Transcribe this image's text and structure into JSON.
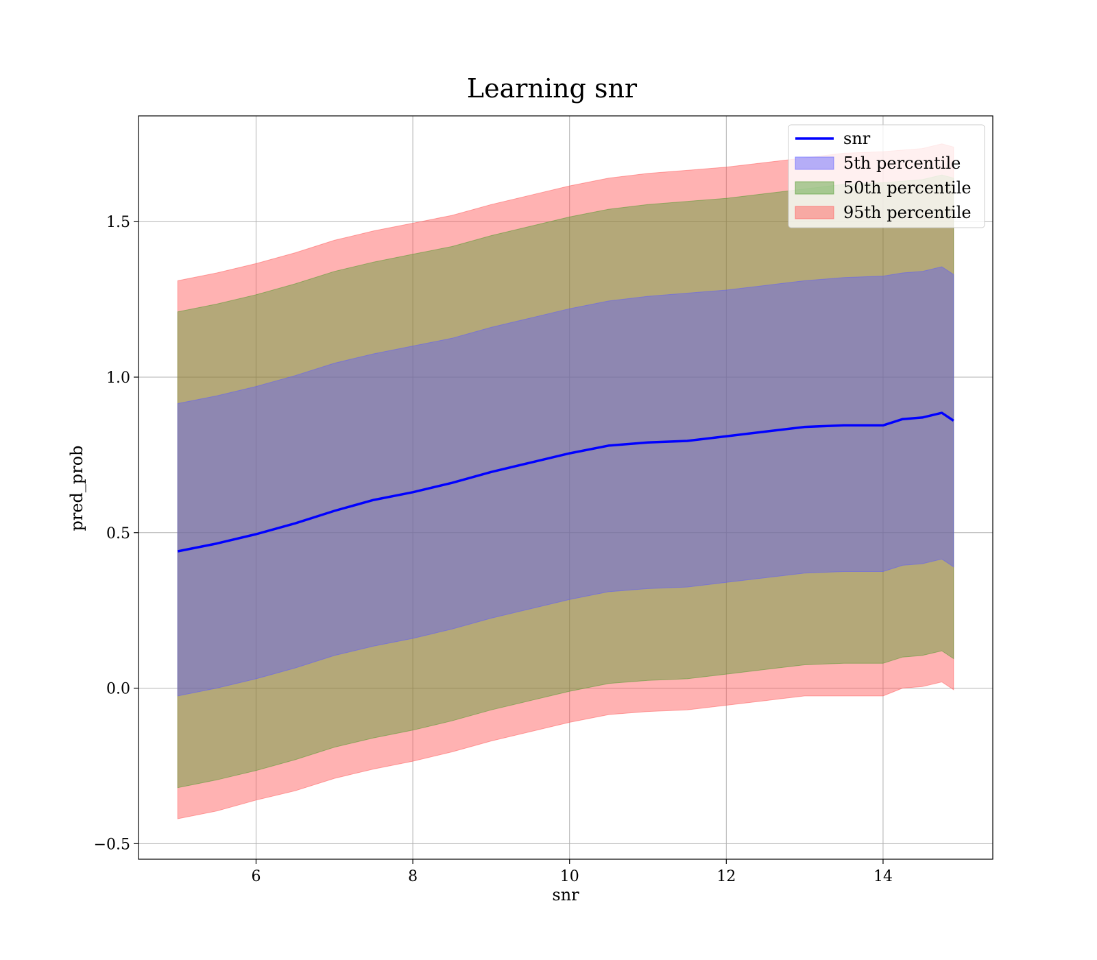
{
  "chart_data": {
    "type": "area",
    "title": "Learning snr",
    "xlabel": "snr",
    "ylabel": "pred_prob",
    "xlim": [
      4.5,
      15.4
    ],
    "ylim": [
      -0.55,
      1.84
    ],
    "xticks": [
      6,
      8,
      10,
      12,
      14
    ],
    "yticks": [
      -0.5,
      0.0,
      0.5,
      1.0,
      1.5
    ],
    "ytick_labels": [
      "−0.5",
      "0.0",
      "0.5",
      "1.0",
      "1.5"
    ],
    "grid": true,
    "legend_position": "top-right",
    "x": [
      5.0,
      5.5,
      6.0,
      6.5,
      7.0,
      7.5,
      8.0,
      8.5,
      9.0,
      9.5,
      10.0,
      10.5,
      11.0,
      11.5,
      12.0,
      12.5,
      13.0,
      13.5,
      14.0,
      14.25,
      14.5,
      14.75,
      14.9
    ],
    "line": {
      "name": "snr",
      "color": "#0000ff",
      "values": [
        0.44,
        0.465,
        0.495,
        0.53,
        0.57,
        0.605,
        0.63,
        0.66,
        0.695,
        0.725,
        0.755,
        0.78,
        0.79,
        0.795,
        0.81,
        0.825,
        0.84,
        0.845,
        0.845,
        0.865,
        0.87,
        0.885,
        0.86
      ]
    },
    "bands": [
      {
        "name": "95th percentile",
        "color": "#ff5555",
        "opacity": 0.45,
        "lower": [
          -0.42,
          -0.395,
          -0.36,
          -0.33,
          -0.29,
          -0.26,
          -0.235,
          -0.205,
          -0.17,
          -0.14,
          -0.11,
          -0.085,
          -0.075,
          -0.07,
          -0.055,
          -0.04,
          -0.025,
          -0.025,
          -0.025,
          0.0,
          0.005,
          0.02,
          -0.005
        ],
        "upper": [
          1.31,
          1.335,
          1.365,
          1.4,
          1.44,
          1.47,
          1.495,
          1.52,
          1.555,
          1.585,
          1.615,
          1.64,
          1.655,
          1.665,
          1.675,
          1.69,
          1.705,
          1.72,
          1.725,
          1.73,
          1.735,
          1.75,
          1.74
        ]
      },
      {
        "name": "50th percentile",
        "color": "#4c9a2a",
        "opacity": 0.42,
        "lower": [
          -0.32,
          -0.295,
          -0.265,
          -0.23,
          -0.19,
          -0.16,
          -0.135,
          -0.105,
          -0.07,
          -0.04,
          -0.01,
          0.015,
          0.025,
          0.03,
          0.045,
          0.06,
          0.075,
          0.08,
          0.08,
          0.1,
          0.105,
          0.12,
          0.095
        ],
        "upper": [
          1.21,
          1.235,
          1.265,
          1.3,
          1.34,
          1.37,
          1.395,
          1.42,
          1.455,
          1.485,
          1.515,
          1.54,
          1.555,
          1.565,
          1.575,
          1.59,
          1.605,
          1.62,
          1.625,
          1.63,
          1.635,
          1.65,
          1.64
        ]
      },
      {
        "name": "5th percentile",
        "color": "#5a5aff",
        "opacity": 0.42,
        "lower": [
          -0.025,
          0.0,
          0.03,
          0.065,
          0.105,
          0.135,
          0.16,
          0.19,
          0.225,
          0.255,
          0.285,
          0.31,
          0.32,
          0.325,
          0.34,
          0.355,
          0.37,
          0.375,
          0.375,
          0.395,
          0.4,
          0.415,
          0.39
        ],
        "upper": [
          0.915,
          0.94,
          0.97,
          1.005,
          1.045,
          1.075,
          1.1,
          1.125,
          1.16,
          1.19,
          1.22,
          1.245,
          1.26,
          1.27,
          1.28,
          1.295,
          1.31,
          1.32,
          1.325,
          1.335,
          1.34,
          1.355,
          1.33
        ]
      }
    ],
    "legend": [
      {
        "label": "snr",
        "kind": "line",
        "color": "#0000ff"
      },
      {
        "label": "5th percentile",
        "kind": "patch",
        "color": "#5a5aff"
      },
      {
        "label": "50th percentile",
        "kind": "patch",
        "color": "#4c9a2a"
      },
      {
        "label": "95th percentile",
        "kind": "patch",
        "color": "#ff5555"
      }
    ]
  }
}
